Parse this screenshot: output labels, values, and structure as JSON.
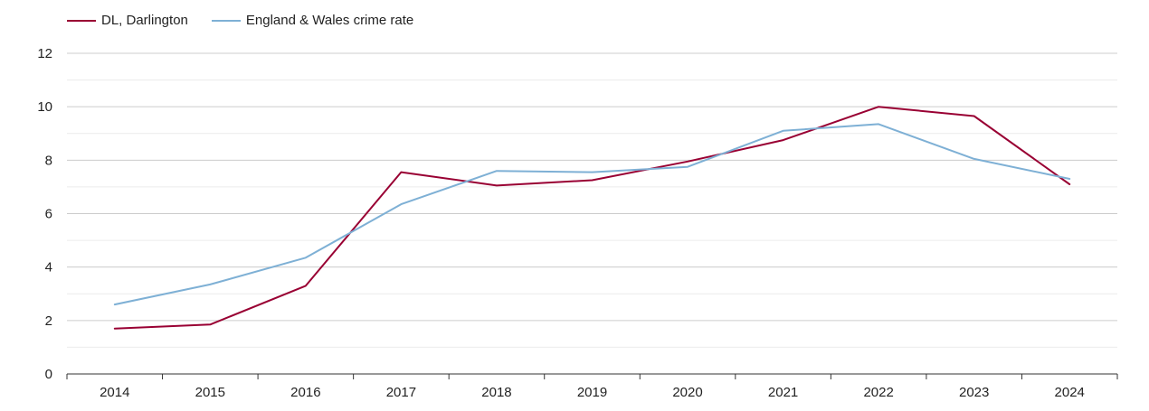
{
  "chart_data": {
    "type": "line",
    "title": "",
    "xlabel": "",
    "ylabel": "",
    "categories": [
      "2014",
      "2015",
      "2016",
      "2017",
      "2018",
      "2019",
      "2020",
      "2021",
      "2022",
      "2023",
      "2024"
    ],
    "ylim": [
      0,
      12
    ],
    "yticks": [
      0,
      2,
      4,
      6,
      8,
      10,
      12
    ],
    "grid": true,
    "legend_position": "top-left",
    "series": [
      {
        "name": "DL, Darlington",
        "color": "#990033",
        "values": [
          1.7,
          1.85,
          3.3,
          7.55,
          7.05,
          7.25,
          7.95,
          8.75,
          10.0,
          9.65,
          7.1
        ]
      },
      {
        "name": "England & Wales crime rate",
        "color": "#7eb0d5",
        "values": [
          2.6,
          3.35,
          4.35,
          6.35,
          7.6,
          7.55,
          7.75,
          9.1,
          9.35,
          8.05,
          7.3
        ]
      }
    ]
  }
}
